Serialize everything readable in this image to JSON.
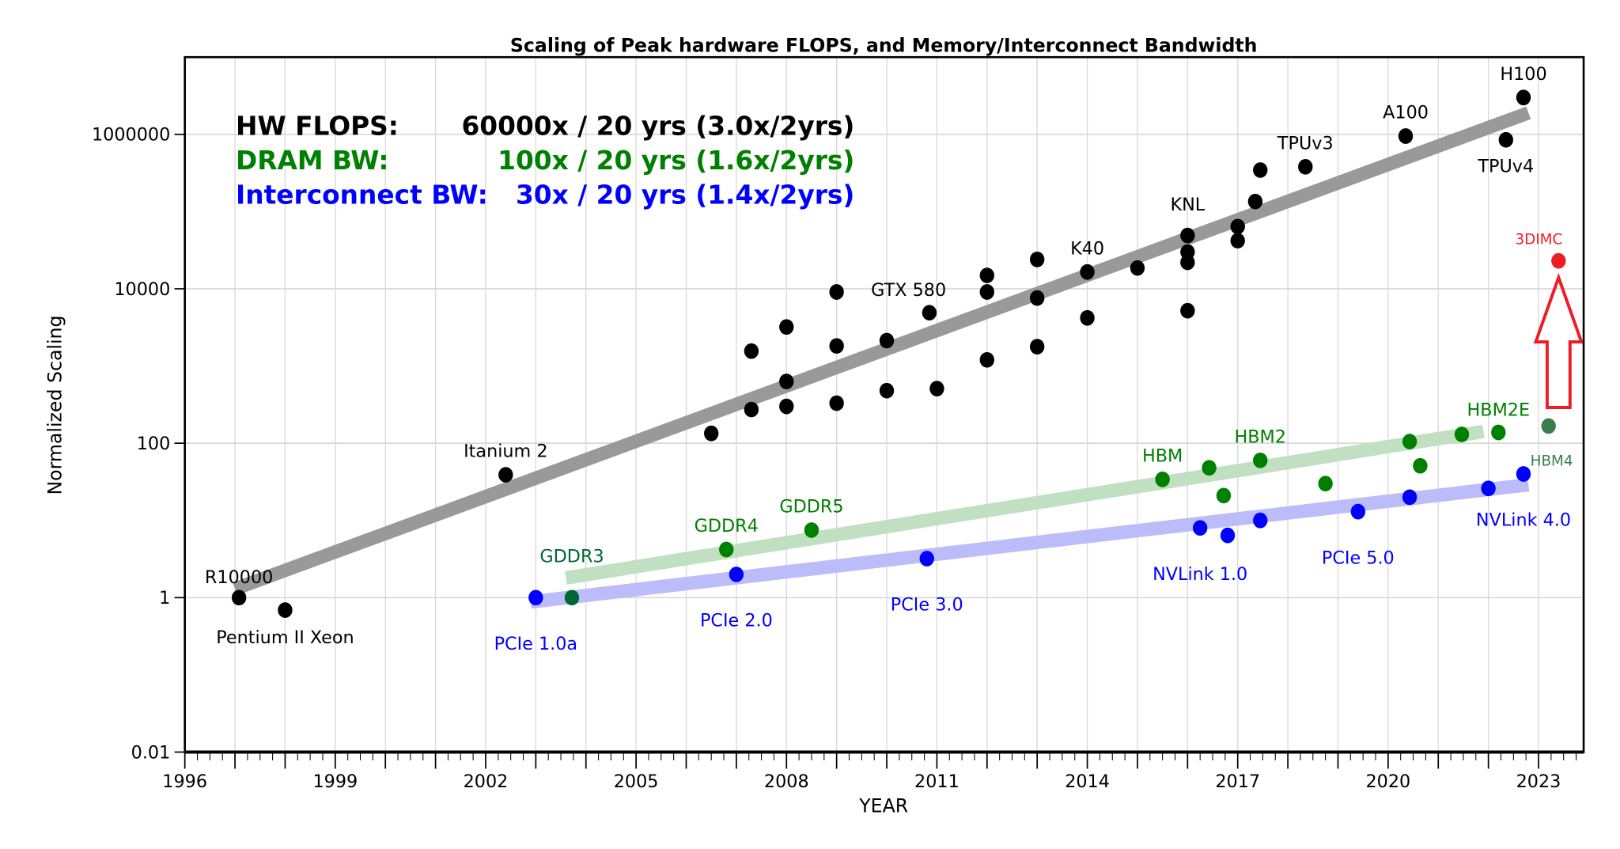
{
  "chart_data": {
    "type": "scatter",
    "title": "Scaling of Peak hardware FLOPS, and Memory/Interconnect Bandwidth",
    "xlabel": "YEAR",
    "ylabel": "Normalized Scaling",
    "xlim": [
      1996,
      2023.9
    ],
    "ylim": [
      0.01,
      10000000
    ],
    "yscale": "log",
    "grid": true,
    "x_ticks": [
      1996,
      1999,
      2002,
      2005,
      2008,
      2011,
      2014,
      2017,
      2020,
      2023
    ],
    "y_ticks": [
      {
        "value": 0.01,
        "label": "0.01"
      },
      {
        "value": 1,
        "label": "1"
      },
      {
        "value": 100,
        "label": "100"
      },
      {
        "value": 10000,
        "label": "10000"
      },
      {
        "value": 1000000,
        "label": "1000000"
      }
    ],
    "legend": {
      "placement": "top-left",
      "entries": [
        {
          "name": "HW FLOPS:",
          "text": "60000x / 20 yrs (3.0x/2yrs)",
          "color": "#000000"
        },
        {
          "name": "DRAM BW:",
          "text": "100x / 20 yrs (1.6x/2yrs)",
          "color": "#008000"
        },
        {
          "name": "Interconnect BW:",
          "text": "30x / 20 yrs (1.4x/2yrs)",
          "color": "#0000ff"
        }
      ]
    },
    "series": [
      {
        "name": "HW FLOPS",
        "color": "#000000",
        "trend": {
          "color": "#999999",
          "from": [
            1997.0,
            1.3
          ],
          "to": [
            2022.8,
            1900000
          ]
        },
        "points": [
          {
            "x": 1997.08,
            "y": 1,
            "label": "R10000"
          },
          {
            "x": 1998.0,
            "y": 0.69,
            "label": "Pentium II Xeon"
          },
          {
            "x": 2002.4,
            "y": 39,
            "label": "Itanium 2"
          },
          {
            "x": 2006.5,
            "y": 134
          },
          {
            "x": 2007.3,
            "y": 273
          },
          {
            "x": 2007.3,
            "y": 1560
          },
          {
            "x": 2008.0,
            "y": 3200
          },
          {
            "x": 2008.0,
            "y": 630
          },
          {
            "x": 2008.0,
            "y": 300
          },
          {
            "x": 2009.0,
            "y": 9100
          },
          {
            "x": 2009.0,
            "y": 1820
          },
          {
            "x": 2009.0,
            "y": 330
          },
          {
            "x": 2010.0,
            "y": 2130
          },
          {
            "x": 2010.0,
            "y": 480
          },
          {
            "x": 2010.85,
            "y": 4900,
            "label": "GTX 580"
          },
          {
            "x": 2011.0,
            "y": 510
          },
          {
            "x": 2012.0,
            "y": 14900
          },
          {
            "x": 2012.0,
            "y": 9100
          },
          {
            "x": 2012.0,
            "y": 1200
          },
          {
            "x": 2013.0,
            "y": 24000
          },
          {
            "x": 2013.0,
            "y": 7600
          },
          {
            "x": 2013.0,
            "y": 1780
          },
          {
            "x": 2014.0,
            "y": 16500,
            "label": "K40"
          },
          {
            "x": 2014.0,
            "y": 4200
          },
          {
            "x": 2015.0,
            "y": 18600
          },
          {
            "x": 2016.0,
            "y": 49000,
            "label": "KNL"
          },
          {
            "x": 2016.0,
            "y": 30000
          },
          {
            "x": 2016.0,
            "y": 22000
          },
          {
            "x": 2016.0,
            "y": 5200
          },
          {
            "x": 2017.0,
            "y": 64000
          },
          {
            "x": 2017.0,
            "y": 42000
          },
          {
            "x": 2017.35,
            "y": 135000
          },
          {
            "x": 2017.45,
            "y": 345000
          },
          {
            "x": 2018.35,
            "y": 380000,
            "label": "TPUv3"
          },
          {
            "x": 2020.35,
            "y": 950000,
            "label": "A100"
          },
          {
            "x": 2022.35,
            "y": 850000,
            "label": "TPUv4"
          },
          {
            "x": 2022.7,
            "y": 3000000,
            "label": "H100"
          }
        ]
      },
      {
        "name": "3DIMC",
        "color": "#ee1c25",
        "points": [
          {
            "x": 2023.4,
            "y": 23000,
            "label": "3DIMC"
          }
        ]
      },
      {
        "name": "DRAM BW",
        "color": "#008000",
        "trend": {
          "color": "#c1dfc1",
          "from": [
            2003.6,
            1.8
          ],
          "to": [
            2021.9,
            142
          ]
        },
        "points": [
          {
            "x": 2003.72,
            "y": 1,
            "label": "GDDR3",
            "color": "#006633"
          },
          {
            "x": 2006.8,
            "y": 4.2,
            "label": "GDDR4"
          },
          {
            "x": 2008.5,
            "y": 7.5,
            "label": "GDDR5"
          },
          {
            "x": 2015.5,
            "y": 34,
            "label": "HBM"
          },
          {
            "x": 2016.43,
            "y": 48
          },
          {
            "x": 2016.72,
            "y": 21
          },
          {
            "x": 2017.45,
            "y": 60,
            "label": "HBM2"
          },
          {
            "x": 2018.75,
            "y": 30
          },
          {
            "x": 2020.43,
            "y": 105
          },
          {
            "x": 2020.64,
            "y": 51
          },
          {
            "x": 2021.47,
            "y": 130
          },
          {
            "x": 2022.2,
            "y": 138,
            "label": "HBM2E"
          },
          {
            "x": 2023.2,
            "y": 167,
            "label": "HBM4",
            "color": "#3a7d4a"
          }
        ]
      },
      {
        "name": "Interconnect BW",
        "color": "#0000ff",
        "trend": {
          "color": "#bcbcfb",
          "from": [
            2002.9,
            0.88
          ],
          "to": [
            2022.8,
            29
          ]
        },
        "points": [
          {
            "x": 2003.0,
            "y": 1,
            "label": "PCIe 1.0a"
          },
          {
            "x": 2007.0,
            "y": 2.0,
            "label": "PCIe 2.0"
          },
          {
            "x": 2010.8,
            "y": 3.2,
            "label": "PCIe 3.0"
          },
          {
            "x": 2016.25,
            "y": 8,
            "label": "NVLink 1.0"
          },
          {
            "x": 2016.8,
            "y": 6.4
          },
          {
            "x": 2017.45,
            "y": 10
          },
          {
            "x": 2019.4,
            "y": 13,
            "label": "PCIe 5.0"
          },
          {
            "x": 2020.43,
            "y": 20
          },
          {
            "x": 2022.0,
            "y": 26
          },
          {
            "x": 2022.7,
            "y": 40,
            "label": "NVLink 4.0"
          }
        ]
      }
    ],
    "annotations": [
      {
        "type": "hollow-arrow",
        "color": "#ee1c25",
        "x": 2023.4,
        "from_y": 290,
        "to_y": 14000
      }
    ]
  }
}
